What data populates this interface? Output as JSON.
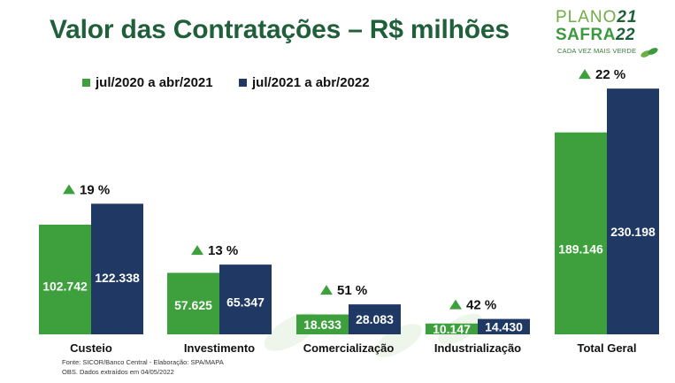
{
  "title": "Valor das Contratações – R$ milhões",
  "logo": {
    "line1_word": "PLANO",
    "line1_num": "21",
    "line2_word": "SAFRA",
    "line2_num": "22",
    "tagline": "CADA VEZ MAIS VERDE"
  },
  "footnotes": [
    "Fonte: SICOR/Banco Central - Elaboração: SPA/MAPA",
    "OBS. Dados extraídos em 04/05/2022"
  ],
  "colors": {
    "green": "#3da03d",
    "navy": "#1f3864",
    "title": "#1f5f3a",
    "triangle": "#3da03d"
  },
  "icons": [
    "up-triangle-icon",
    "leaf-icon"
  ],
  "chart_data": {
    "type": "bar",
    "title": "Valor das Contratações – R$ milhões",
    "xlabel": "",
    "ylabel": "",
    "ylim": [
      0,
      260
    ],
    "legend_position": "top-left",
    "grid": false,
    "categories": [
      "Custeio",
      "Investimento",
      "Comercialização",
      "Industrialização",
      "Total Geral"
    ],
    "series": [
      {
        "name": "jul/2020 a abr/2021",
        "values": [
          102.742,
          57.625,
          18.633,
          10.147,
          189.146
        ],
        "labels": [
          "102.742",
          "57.625",
          "18.633",
          "10.147",
          "189.146"
        ]
      },
      {
        "name": "jul/2021 a abr/2022",
        "values": [
          122.338,
          65.347,
          28.083,
          14.43,
          230.198
        ],
        "labels": [
          "122.338",
          "65.347",
          "28.083",
          "14.430",
          "230.198"
        ]
      }
    ],
    "growth_labels": [
      "19 %",
      "13 %",
      "51 %",
      "42 %",
      "22 %"
    ]
  }
}
